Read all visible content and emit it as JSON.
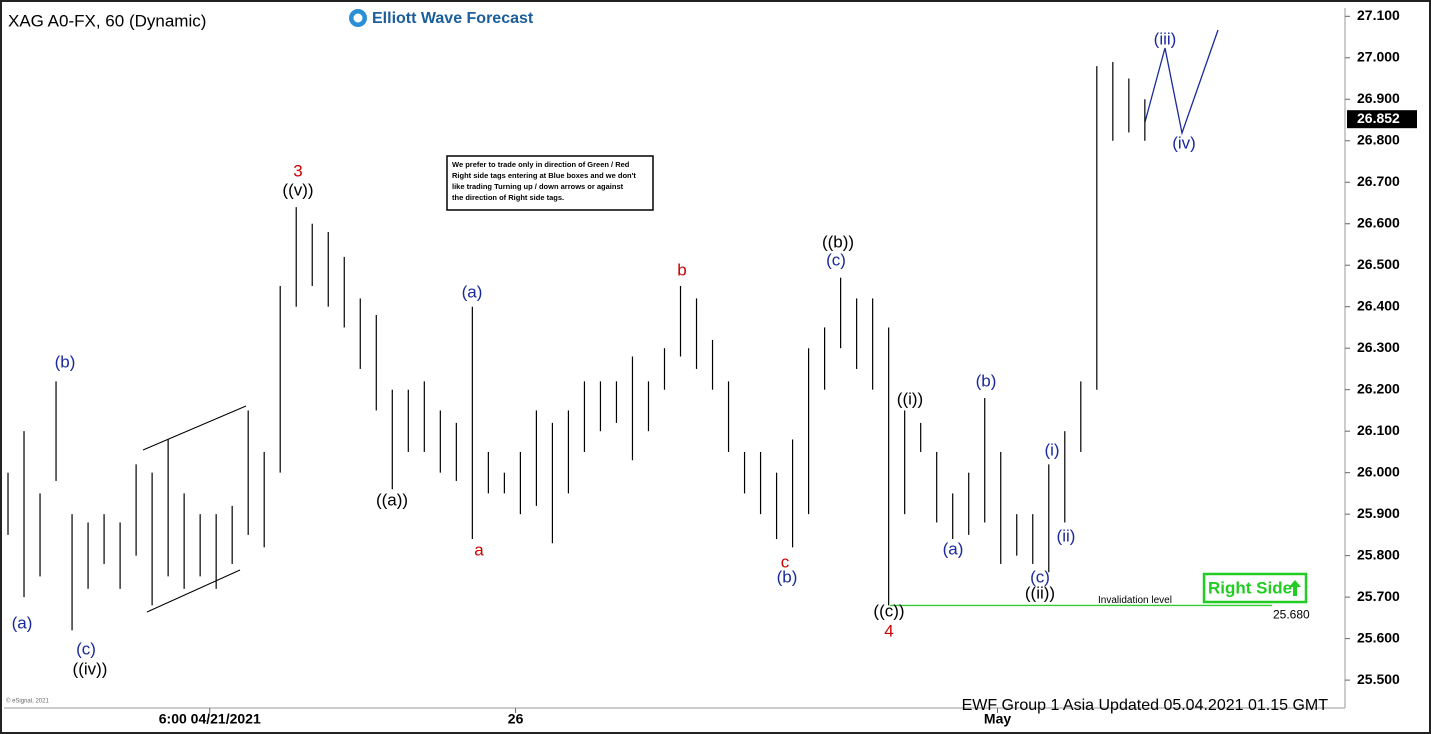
{
  "chart_data": {
    "type": "ohlc",
    "title": "XAG A0-FX, 60 (Dynamic)",
    "logo": "Elliott Wave Forecast",
    "footer": "EWF Group 1 Asia Updated 05.04.2021 01.15 GMT",
    "copyright": "© eSignal, 2021",
    "note": {
      "lines": [
        "We prefer to trade only in direction of Green / Red",
        "Right side tags entering at Blue boxes and we don't",
        "like trading Turning up / down arrows or against",
        "the direction of Right side tags."
      ]
    },
    "tag": "Right Side",
    "color": "#000000",
    "x": [
      0,
      1,
      2,
      3,
      4,
      5,
      6,
      7,
      8,
      9,
      10,
      11,
      12,
      13,
      14,
      15,
      16,
      17,
      18,
      19,
      20,
      21,
      22,
      23,
      24,
      25,
      26,
      27,
      28,
      29,
      30,
      31,
      32,
      33,
      34,
      35,
      36,
      37,
      38,
      39,
      40,
      41,
      42,
      43,
      44,
      45,
      46,
      47,
      48,
      49,
      50,
      51,
      52,
      53,
      54,
      55,
      56,
      57,
      58,
      59,
      60,
      61,
      62,
      63,
      64,
      65,
      66,
      67,
      68,
      69,
      70,
      71
    ],
    "high": [
      26.0,
      26.1,
      25.95,
      26.22,
      25.9,
      25.88,
      25.9,
      25.88,
      26.02,
      26.0,
      26.08,
      25.95,
      25.9,
      25.9,
      25.92,
      26.15,
      26.05,
      26.45,
      26.64,
      26.6,
      26.58,
      26.52,
      26.42,
      26.38,
      26.2,
      26.2,
      26.22,
      26.15,
      26.12,
      26.4,
      26.05,
      26.0,
      26.05,
      26.15,
      26.12,
      26.15,
      26.22,
      26.22,
      26.22,
      26.28,
      26.22,
      26.3,
      26.45,
      26.42,
      26.32,
      26.22,
      26.05,
      26.05,
      26.0,
      26.08,
      26.3,
      26.35,
      26.47,
      26.42,
      26.42,
      26.35,
      26.15,
      26.12,
      26.05,
      25.95,
      26.0,
      26.18,
      26.05,
      25.9,
      25.9,
      26.02,
      26.1,
      26.22,
      26.98,
      26.99,
      26.95,
      26.9
    ],
    "low": [
      25.85,
      25.7,
      25.75,
      25.98,
      25.62,
      25.72,
      25.78,
      25.72,
      25.8,
      25.68,
      25.75,
      25.72,
      25.75,
      25.72,
      25.78,
      25.85,
      25.82,
      26.0,
      26.4,
      26.45,
      26.4,
      26.35,
      26.25,
      26.15,
      25.96,
      26.05,
      26.05,
      26.0,
      25.98,
      25.84,
      25.95,
      25.95,
      25.9,
      25.92,
      25.83,
      25.95,
      26.05,
      26.1,
      26.12,
      26.03,
      26.1,
      26.2,
      26.28,
      26.25,
      26.2,
      26.05,
      25.95,
      25.9,
      25.84,
      25.82,
      25.9,
      26.2,
      26.3,
      26.25,
      26.2,
      25.68,
      25.9,
      26.05,
      25.88,
      25.84,
      25.85,
      25.88,
      25.78,
      25.8,
      25.78,
      25.76,
      25.88,
      26.05,
      26.2,
      26.8,
      26.82,
      26.8
    ],
    "xlim": [
      -0.5,
      83.5
    ],
    "xticks": [
      {
        "value": 12.6,
        "label": "6:00 04/21/2021"
      },
      {
        "value": 31.7,
        "label": "26"
      },
      {
        "value": 61.8,
        "label": "May"
      }
    ],
    "ylim": [
      25.44,
      27.12
    ],
    "yticks": [
      {
        "value": 25.5,
        "label": "25.500"
      },
      {
        "value": 25.6,
        "label": "25.600"
      },
      {
        "value": 25.7,
        "label": "25.700"
      },
      {
        "value": 25.8,
        "label": "25.800"
      },
      {
        "value": 25.9,
        "label": "25.900"
      },
      {
        "value": 26.0,
        "label": "26.000"
      },
      {
        "value": 26.1,
        "label": "26.100"
      },
      {
        "value": 26.2,
        "label": "26.200"
      },
      {
        "value": 26.3,
        "label": "26.300"
      },
      {
        "value": 26.4,
        "label": "26.400"
      },
      {
        "value": 26.5,
        "label": "26.500"
      },
      {
        "value": 26.6,
        "label": "26.600"
      },
      {
        "value": 26.7,
        "label": "26.700"
      },
      {
        "value": 26.8,
        "label": "26.800"
      },
      {
        "value": 26.9,
        "label": "26.900"
      },
      {
        "value": 27.0,
        "label": "27.000"
      },
      {
        "value": 27.1,
        "label": "27.100"
      }
    ],
    "last_price": 26.852,
    "invalidation": {
      "value": 25.68,
      "label": "25.680",
      "text": "Invalidation level",
      "color": "#33cc33"
    },
    "annotations": [
      {
        "text": "(a)",
        "color": "#1a2a9c"
      },
      {
        "text": "(b)",
        "color": "#1a2a9c"
      },
      {
        "text": "(c)",
        "color": "#1a2a9c"
      },
      {
        "text": "((iv))",
        "color": "#000000"
      },
      {
        "text": "3",
        "color": "#cc0000"
      },
      {
        "text": "((v))",
        "color": "#000000"
      },
      {
        "text": "((a))",
        "color": "#000000"
      },
      {
        "text": "(a)",
        "color": "#1a2a9c"
      },
      {
        "text": "a",
        "color": "#cc0000"
      },
      {
        "text": "b",
        "color": "#cc0000"
      },
      {
        "text": "c",
        "color": "#cc0000"
      },
      {
        "text": "(b)",
        "color": "#1a2a9c"
      },
      {
        "text": "((b))",
        "color": "#000000"
      },
      {
        "text": "(c)",
        "color": "#1a2a9c"
      },
      {
        "text": "((c))",
        "color": "#000000"
      },
      {
        "text": "4",
        "color": "#cc0000"
      },
      {
        "text": "((i))",
        "color": "#000000"
      },
      {
        "text": "(a)",
        "color": "#1a2a9c"
      },
      {
        "text": "(b)",
        "color": "#1a2a9c"
      },
      {
        "text": "(i)",
        "color": "#1a2a9c"
      },
      {
        "text": "(ii)",
        "color": "#1a2a9c"
      },
      {
        "text": "(c)",
        "color": "#1a2a9c"
      },
      {
        "text": "((ii))",
        "color": "#000000"
      },
      {
        "text": "(iii)",
        "color": "#1a2a9c"
      },
      {
        "text": "(iv)",
        "color": "#1a2a9c"
      }
    ]
  }
}
